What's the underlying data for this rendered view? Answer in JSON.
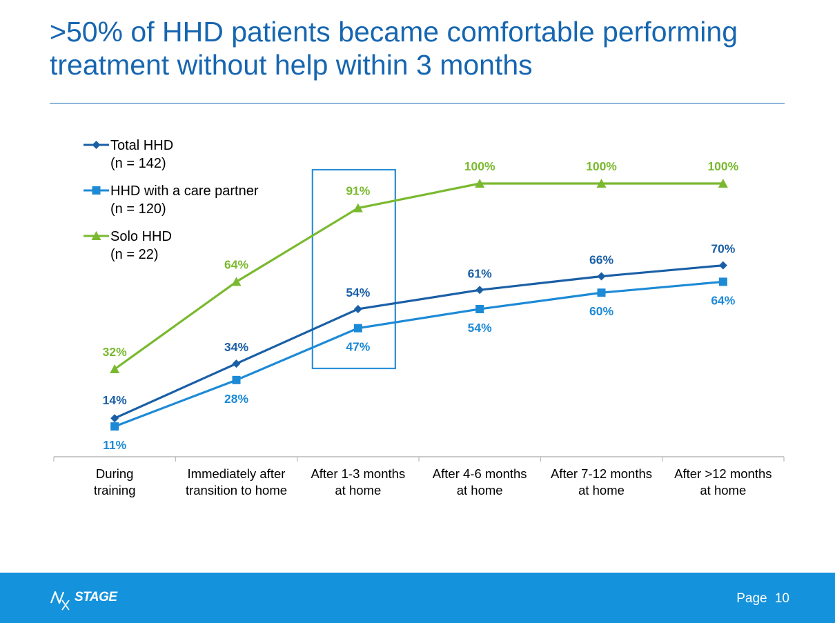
{
  "slide": {
    "title": ">50% of HHD patients became comfortable performing treatment without help within 3 months"
  },
  "footer": {
    "logo_text": "STAGE",
    "page_label": "Page",
    "page_number": "10"
  },
  "colors": {
    "title": "#1666b0",
    "total": "#1a5fa6",
    "partner": "#1d8ad6",
    "solo": "#7ab92f",
    "highlight_box": "#2a8fd8",
    "footer": "#1592dc"
  },
  "chart_data": {
    "type": "line",
    "categories": [
      [
        "During",
        "training"
      ],
      [
        "Immediately after",
        "transition to home"
      ],
      [
        "After 1-3 months",
        "at home"
      ],
      [
        "After 4-6 months",
        "at home"
      ],
      [
        "After 7-12 months",
        "at home"
      ],
      [
        "After >12 months",
        "at home"
      ]
    ],
    "ylim": [
      0,
      100
    ],
    "grid": false,
    "legend_position": "top-left",
    "highlighted_category": 2,
    "series": [
      {
        "key": "total",
        "name": "Total HHD",
        "sub": "(n = 142)",
        "marker": "diamond",
        "values": [
          14,
          34,
          54,
          61,
          66,
          70
        ],
        "labels": [
          "14%",
          "34%",
          "54%",
          "61%",
          "66%",
          "70%"
        ]
      },
      {
        "key": "partner",
        "name": "HHD with a care partner",
        "sub": "(n = 120)",
        "marker": "square",
        "values": [
          11,
          28,
          47,
          54,
          60,
          64
        ],
        "labels": [
          "11%",
          "28%",
          "47%",
          "54%",
          "60%",
          "64%"
        ]
      },
      {
        "key": "solo",
        "name": "Solo HHD",
        "sub": "(n = 22)",
        "marker": "triangle",
        "values": [
          32,
          64,
          91,
          100,
          100,
          100
        ],
        "labels": [
          "32%",
          "64%",
          "91%",
          "100%",
          "100%",
          "100%"
        ]
      }
    ]
  }
}
